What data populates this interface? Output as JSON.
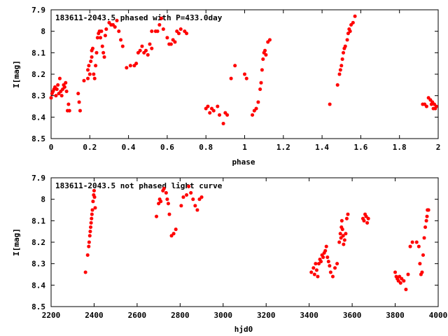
{
  "chart_data": [
    {
      "type": "scatter",
      "title": "183611-2043.5 phased with P=433.0day",
      "xlabel": "phase",
      "ylabel": "I[mag]",
      "xlim": [
        0,
        2
      ],
      "ylim": [
        7.9,
        8.5
      ],
      "y_inverted": true,
      "xticks": [
        0,
        0.2,
        0.4,
        0.6,
        0.8,
        1,
        1.2,
        1.4,
        1.6,
        1.8,
        2
      ],
      "xtick_labels": [
        "0",
        "0.2",
        "0.4",
        "0.6",
        "0.8",
        "1",
        "1.2",
        "1.4",
        "1.6",
        "1.8",
        "2"
      ],
      "yticks": [
        7.9,
        8,
        8.1,
        8.2,
        8.3,
        8.4,
        8.5
      ],
      "ytick_labels": [
        "7.9",
        "8",
        "8.1",
        "8.2",
        "8.3",
        "8.4",
        "8.5"
      ],
      "marker_color": "#ff0000",
      "legend": "none",
      "grid": false,
      "points": [
        [
          0.0,
          8.31
        ],
        [
          0.005,
          8.29
        ],
        [
          0.01,
          8.28
        ],
        [
          0.015,
          8.27
        ],
        [
          0.02,
          8.26
        ],
        [
          0.025,
          8.3
        ],
        [
          0.03,
          8.27
        ],
        [
          0.035,
          8.25
        ],
        [
          0.04,
          8.29
        ],
        [
          0.045,
          8.22
        ],
        [
          0.05,
          8.28
        ],
        [
          0.055,
          8.3
        ],
        [
          0.06,
          8.27
        ],
        [
          0.065,
          8.25
        ],
        [
          0.07,
          8.26
        ],
        [
          0.075,
          8.24
        ],
        [
          0.08,
          8.28
        ],
        [
          0.085,
          8.37
        ],
        [
          0.09,
          8.34
        ],
        [
          0.095,
          8.37
        ],
        [
          0.14,
          8.29
        ],
        [
          0.145,
          8.33
        ],
        [
          0.15,
          8.37
        ],
        [
          0.17,
          8.23
        ],
        [
          0.19,
          8.22
        ],
        [
          0.19,
          8.18
        ],
        [
          0.195,
          8.16
        ],
        [
          0.2,
          8.2
        ],
        [
          0.205,
          8.14
        ],
        [
          0.21,
          8.12
        ],
        [
          0.21,
          8.09
        ],
        [
          0.215,
          8.08
        ],
        [
          0.22,
          8.2
        ],
        [
          0.225,
          8.22
        ],
        [
          0.23,
          8.16
        ],
        [
          0.235,
          8.1
        ],
        [
          0.24,
          8.03
        ],
        [
          0.245,
          8.01
        ],
        [
          0.25,
          8.0
        ],
        [
          0.255,
          8.03
        ],
        [
          0.26,
          8.0
        ],
        [
          0.265,
          8.07
        ],
        [
          0.27,
          8.1
        ],
        [
          0.275,
          8.12
        ],
        [
          0.28,
          8.02
        ],
        [
          0.285,
          7.99
        ],
        [
          0.3,
          7.96
        ],
        [
          0.31,
          7.97
        ],
        [
          0.32,
          7.97
        ],
        [
          0.33,
          7.98
        ],
        [
          0.34,
          7.95
        ],
        [
          0.35,
          8.0
        ],
        [
          0.36,
          8.04
        ],
        [
          0.37,
          8.07
        ],
        [
          0.39,
          8.17
        ],
        [
          0.41,
          8.16
        ],
        [
          0.43,
          8.16
        ],
        [
          0.44,
          8.15
        ],
        [
          0.45,
          8.1
        ],
        [
          0.46,
          8.09
        ],
        [
          0.47,
          8.07
        ],
        [
          0.48,
          8.1
        ],
        [
          0.49,
          8.09
        ],
        [
          0.5,
          8.11
        ],
        [
          0.51,
          8.06
        ],
        [
          0.52,
          8.08
        ],
        [
          0.52,
          8.0
        ],
        [
          0.54,
          8.0
        ],
        [
          0.55,
          8.0
        ],
        [
          0.56,
          7.97
        ],
        [
          0.57,
          7.94
        ],
        [
          0.58,
          7.99
        ],
        [
          0.6,
          8.03
        ],
        [
          0.61,
          8.06
        ],
        [
          0.62,
          8.06
        ],
        [
          0.63,
          8.04
        ],
        [
          0.64,
          8.05
        ],
        [
          0.65,
          8.0
        ],
        [
          0.66,
          8.01
        ],
        [
          0.67,
          7.99
        ],
        [
          0.69,
          8.0
        ],
        [
          0.7,
          8.01
        ],
        [
          0.8,
          8.36
        ],
        [
          0.81,
          8.35
        ],
        [
          0.82,
          8.38
        ],
        [
          0.83,
          8.36
        ],
        [
          0.84,
          8.37
        ],
        [
          0.86,
          8.35
        ],
        [
          0.87,
          8.39
        ],
        [
          0.89,
          8.43
        ],
        [
          0.9,
          8.38
        ],
        [
          0.91,
          8.39
        ],
        [
          0.93,
          8.22
        ],
        [
          0.95,
          8.16
        ],
        [
          1.0,
          8.2
        ],
        [
          1.01,
          8.22
        ],
        [
          1.04,
          8.39
        ],
        [
          1.05,
          8.37
        ],
        [
          1.06,
          8.36
        ],
        [
          1.07,
          8.33
        ],
        [
          1.08,
          8.27
        ],
        [
          1.085,
          8.24
        ],
        [
          1.09,
          8.18
        ],
        [
          1.095,
          8.13
        ],
        [
          1.1,
          8.1
        ],
        [
          1.105,
          8.09
        ],
        [
          1.11,
          8.11
        ],
        [
          1.12,
          8.05
        ],
        [
          1.13,
          8.04
        ],
        [
          1.44,
          8.34
        ],
        [
          1.48,
          8.25
        ],
        [
          1.49,
          8.2
        ],
        [
          1.495,
          8.18
        ],
        [
          1.5,
          8.16
        ],
        [
          1.505,
          8.13
        ],
        [
          1.51,
          8.1
        ],
        [
          1.515,
          8.08
        ],
        [
          1.52,
          8.07
        ],
        [
          1.53,
          8.04
        ],
        [
          1.535,
          8.01
        ],
        [
          1.54,
          7.99
        ],
        [
          1.545,
          8.0
        ],
        [
          1.55,
          7.97
        ],
        [
          1.56,
          7.96
        ],
        [
          1.57,
          7.93
        ],
        [
          1.92,
          8.34
        ],
        [
          1.93,
          8.34
        ],
        [
          1.94,
          8.35
        ],
        [
          1.95,
          8.31
        ],
        [
          1.96,
          8.32
        ],
        [
          1.965,
          8.34
        ],
        [
          1.97,
          8.33
        ],
        [
          1.975,
          8.36
        ],
        [
          1.98,
          8.34
        ],
        [
          1.985,
          8.36
        ],
        [
          1.99,
          8.35
        ]
      ]
    },
    {
      "type": "scatter",
      "title": "183611-2043.5 not phased light curve",
      "xlabel": "hjd0",
      "ylabel": "I[mag]",
      "xlim": [
        2200,
        4000
      ],
      "ylim": [
        7.9,
        8.5
      ],
      "y_inverted": true,
      "xticks": [
        2200,
        2400,
        2600,
        2800,
        3000,
        3200,
        3400,
        3600,
        3800,
        4000
      ],
      "xtick_labels": [
        "2200",
        "2400",
        "2600",
        "2800",
        "3000",
        "3200",
        "3400",
        "3600",
        "3800",
        "4000"
      ],
      "yticks": [
        7.9,
        8,
        8.1,
        8.2,
        8.3,
        8.4,
        8.5
      ],
      "ytick_labels": [
        "7.9",
        "8",
        "8.1",
        "8.2",
        "8.3",
        "8.4",
        "8.5"
      ],
      "marker_color": "#ff0000",
      "legend": "none",
      "grid": false,
      "points": [
        [
          2360,
          8.34
        ],
        [
          2370,
          8.26
        ],
        [
          2375,
          8.22
        ],
        [
          2377,
          8.2
        ],
        [
          2380,
          8.17
        ],
        [
          2382,
          8.15
        ],
        [
          2384,
          8.13
        ],
        [
          2386,
          8.11
        ],
        [
          2388,
          8.09
        ],
        [
          2390,
          8.07
        ],
        [
          2392,
          8.05
        ],
        [
          2395,
          8.01
        ],
        [
          2398,
          7.98
        ],
        [
          2400,
          7.96
        ],
        [
          2402,
          7.99
        ],
        [
          2405,
          8.04
        ],
        [
          2690,
          8.08
        ],
        [
          2700,
          8.02
        ],
        [
          2705,
          8.0
        ],
        [
          2710,
          8.01
        ],
        [
          2720,
          7.96
        ],
        [
          2725,
          7.95
        ],
        [
          2735,
          7.97
        ],
        [
          2740,
          8.0
        ],
        [
          2745,
          8.02
        ],
        [
          2750,
          8.07
        ],
        [
          2760,
          8.17
        ],
        [
          2770,
          8.16
        ],
        [
          2780,
          8.14
        ],
        [
          2805,
          8.03
        ],
        [
          2815,
          7.99
        ],
        [
          2830,
          7.98
        ],
        [
          2840,
          7.94
        ],
        [
          2850,
          7.97
        ],
        [
          2860,
          8.0
        ],
        [
          2870,
          8.03
        ],
        [
          2880,
          8.05
        ],
        [
          2890,
          8.0
        ],
        [
          2900,
          7.99
        ],
        [
          3410,
          8.34
        ],
        [
          3420,
          8.32
        ],
        [
          3425,
          8.35
        ],
        [
          3430,
          8.3
        ],
        [
          3435,
          8.33
        ],
        [
          3440,
          8.36
        ],
        [
          3445,
          8.3
        ],
        [
          3450,
          8.28
        ],
        [
          3455,
          8.29
        ],
        [
          3460,
          8.26
        ],
        [
          3465,
          8.27
        ],
        [
          3470,
          8.25
        ],
        [
          3475,
          8.24
        ],
        [
          3480,
          8.22
        ],
        [
          3485,
          8.27
        ],
        [
          3490,
          8.29
        ],
        [
          3495,
          8.31
        ],
        [
          3500,
          8.34
        ],
        [
          3510,
          8.36
        ],
        [
          3520,
          8.32
        ],
        [
          3530,
          8.3
        ],
        [
          3540,
          8.2
        ],
        [
          3545,
          8.16
        ],
        [
          3548,
          8.18
        ],
        [
          3550,
          8.13
        ],
        [
          3552,
          8.1
        ],
        [
          3555,
          8.14
        ],
        [
          3558,
          8.17
        ],
        [
          3560,
          8.21
        ],
        [
          3565,
          8.19
        ],
        [
          3570,
          8.16
        ],
        [
          3575,
          8.09
        ],
        [
          3580,
          8.07
        ],
        [
          3650,
          8.09
        ],
        [
          3655,
          8.1
        ],
        [
          3660,
          8.07
        ],
        [
          3665,
          8.08
        ],
        [
          3670,
          8.11
        ],
        [
          3675,
          8.09
        ],
        [
          3800,
          8.34
        ],
        [
          3805,
          8.36
        ],
        [
          3810,
          8.37
        ],
        [
          3815,
          8.38
        ],
        [
          3820,
          8.36
        ],
        [
          3825,
          8.39
        ],
        [
          3830,
          8.37
        ],
        [
          3840,
          8.38
        ],
        [
          3850,
          8.42
        ],
        [
          3860,
          8.35
        ],
        [
          3870,
          8.22
        ],
        [
          3880,
          8.2
        ],
        [
          3900,
          8.2
        ],
        [
          3910,
          8.22
        ],
        [
          3915,
          8.3
        ],
        [
          3920,
          8.35
        ],
        [
          3925,
          8.34
        ],
        [
          3930,
          8.26
        ],
        [
          3935,
          8.18
        ],
        [
          3940,
          8.13
        ],
        [
          3945,
          8.1
        ],
        [
          3948,
          8.08
        ],
        [
          3950,
          8.05
        ],
        [
          3955,
          8.05
        ]
      ]
    }
  ]
}
